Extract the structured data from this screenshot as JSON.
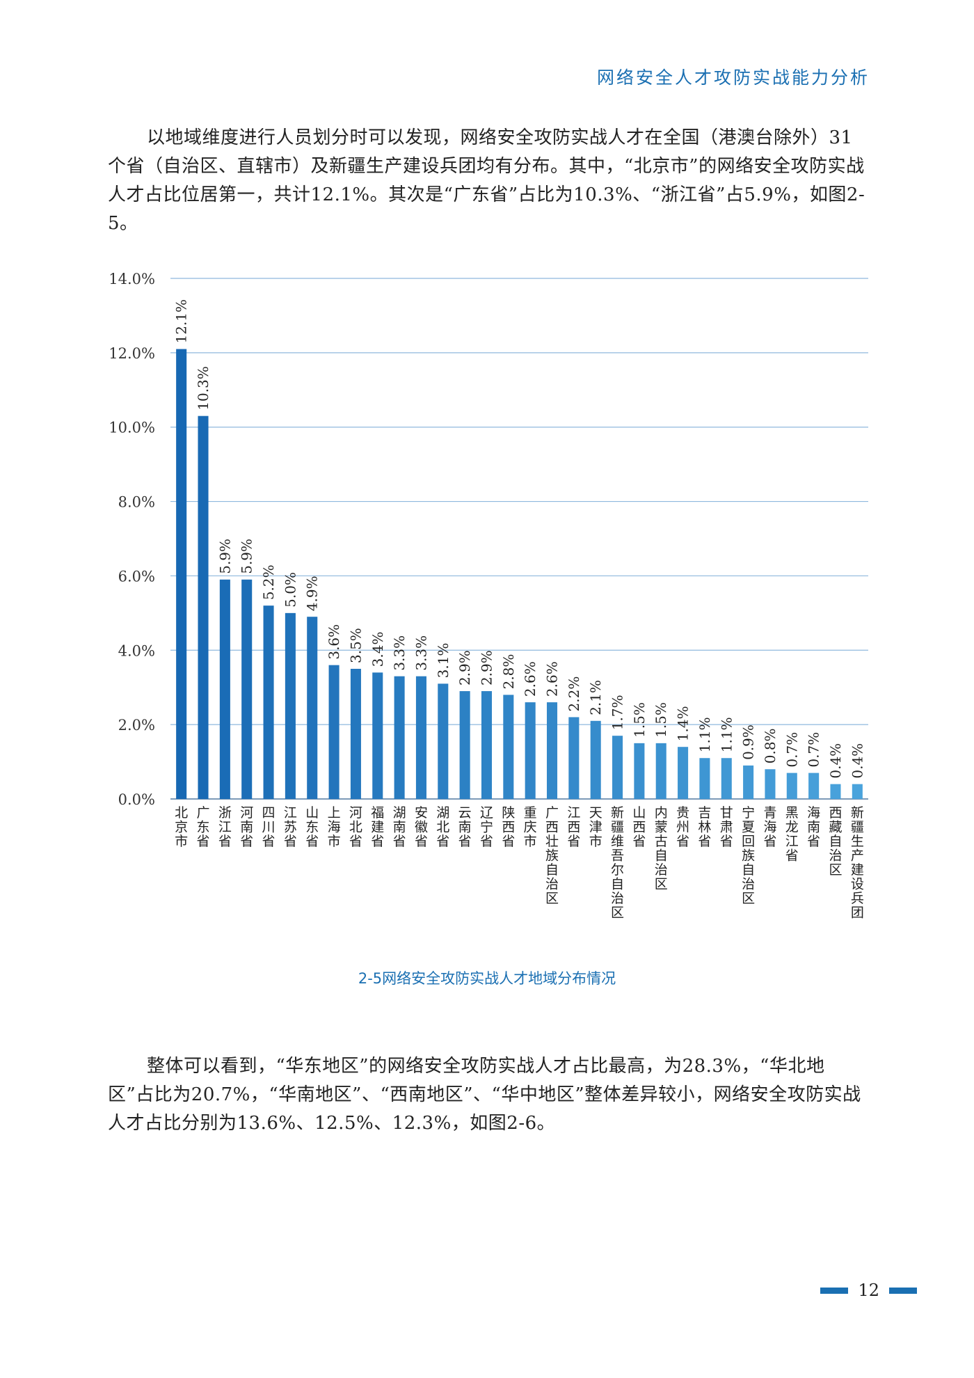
{
  "header": {
    "title": "网络安全人才攻防实战能力分析"
  },
  "paragraphs": {
    "p1": "以地域维度进行人员划分时可以发现，网络安全攻防实战人才在全国（港澳台除外）31个省（自治区、直辖市）及新疆生产建设兵团均有分布。其中，“北京市”的网络安全攻防实战人才占比位居第一，共计12.1%。其次是“广东省”占比为10.3%、“浙江省”占5.9%，如图2-5。",
    "p2": "整体可以看到，“华东地区”的网络安全攻防实战人才占比最高，为28.3%，“华北地区”占比为20.7%，“华南地区”、“西南地区”、“华中地区”整体差异较小，网络安全攻防实战人才占比分别为13.6%、12.5%、12.3%，如图2-6。"
  },
  "chart_data": {
    "type": "bar",
    "title": "",
    "xlabel": "",
    "ylabel": "",
    "ylim": [
      0,
      14
    ],
    "yticks": [
      "0.0%",
      "2.0%",
      "4.0%",
      "6.0%",
      "8.0%",
      "10.0%",
      "12.0%",
      "14.0%"
    ],
    "grid": true,
    "bar_color_start": "#1768b3",
    "bar_color_end": "#4aa3dc",
    "categories": [
      "北京市",
      "广东省",
      "浙江省",
      "河南省",
      "四川省",
      "江苏省",
      "山东省",
      "上海市",
      "河北省",
      "福建省",
      "湖南省",
      "安徽省",
      "湖北省",
      "云南省",
      "辽宁省",
      "陕西省",
      "重庆市",
      "广西壮族自治区",
      "江西省",
      "天津市",
      "新疆维吾尔自治区",
      "山西省",
      "内蒙古自治区",
      "贵州省",
      "吉林省",
      "甘肃省",
      "宁夏回族自治区",
      "青海省",
      "黑龙江省",
      "海南省",
      "西藏自治区",
      "新疆生产建设兵团"
    ],
    "values": [
      12.1,
      10.3,
      5.9,
      5.9,
      5.2,
      5.0,
      4.9,
      3.6,
      3.5,
      3.4,
      3.3,
      3.3,
      3.1,
      2.9,
      2.9,
      2.8,
      2.6,
      2.6,
      2.2,
      2.1,
      1.7,
      1.5,
      1.5,
      1.4,
      1.1,
      1.1,
      0.9,
      0.8,
      0.7,
      0.7,
      0.4,
      0.4
    ],
    "value_labels": [
      "12.1%",
      "10.3%",
      "5.9%",
      "5.9%",
      "5.2%",
      "5.0%",
      "4.9%",
      "3.6%",
      "3.5%",
      "3.4%",
      "3.3%",
      "3.3%",
      "3.1%",
      "2.9%",
      "2.9%",
      "2.8%",
      "2.6%",
      "2.6%",
      "2.2%",
      "2.1%",
      "1.7%",
      "1.5%",
      "1.5%",
      "1.4%",
      "1.1%",
      "1.1%",
      "0.9%",
      "0.8%",
      "0.7%",
      "0.7%",
      "0.4%",
      "0.4%"
    ]
  },
  "caption": "2-5网络安全攻防实战人才地域分布情况",
  "page_number": "12",
  "colors": {
    "accent": "#1a6fb2",
    "grid": "#8fb8dd"
  }
}
